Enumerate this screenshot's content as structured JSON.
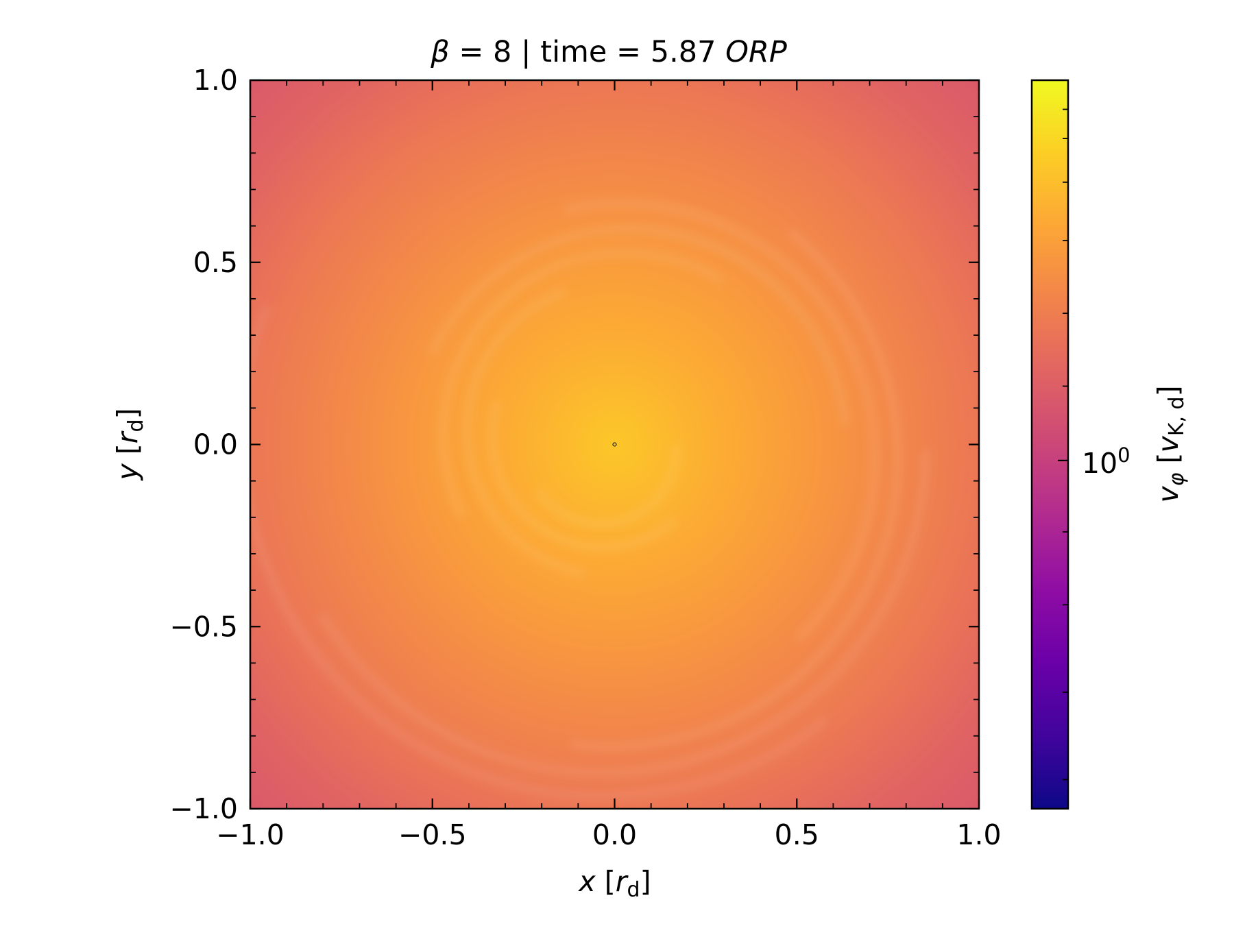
{
  "chart_data": {
    "type": "heatmap",
    "title": {
      "beta_symbol": "β",
      "beta_part": " = 8 | time = 5.87 ",
      "unit": "ORP"
    },
    "colormap": "plasma",
    "colormap_stops": [
      "#0d0887",
      "#41049d",
      "#6a00a8",
      "#8f0da4",
      "#b12a90",
      "#cc4778",
      "#e16462",
      "#f2844b",
      "#fca636",
      "#fcce25",
      "#f0f921"
    ],
    "field": "azimuthal velocity v_phi in the disk midplane, peaked at the center and decreasing outward with spiral structure",
    "xlim": [
      -1.0,
      1.0
    ],
    "ylim": [
      -1.0,
      1.0
    ],
    "x_ticks": [
      {
        "value": -1.0,
        "label": "−1.0"
      },
      {
        "value": -0.5,
        "label": "−0.5"
      },
      {
        "value": 0.0,
        "label": "0.0"
      },
      {
        "value": 0.5,
        "label": "0.5"
      },
      {
        "value": 1.0,
        "label": "1.0"
      }
    ],
    "y_ticks": [
      {
        "value": -1.0,
        "label": "−1.0"
      },
      {
        "value": -0.5,
        "label": "−0.5"
      },
      {
        "value": 0.0,
        "label": "0.0"
      },
      {
        "value": 0.5,
        "label": "0.5"
      },
      {
        "value": 1.0,
        "label": "1.0"
      }
    ],
    "xlabel": {
      "var": "x",
      "unit_open": " [",
      "unit_var": "r",
      "unit_sub": "d",
      "unit_close": "]"
    },
    "ylabel": {
      "var": "y",
      "unit_open": " [",
      "unit_var": "r",
      "unit_sub": "d",
      "unit_close": "]"
    },
    "colorbar": {
      "scale": "log",
      "tick_label_base": "10",
      "tick_label_exp": "0",
      "tick_value": 1.0,
      "tick_fraction": 0.478,
      "minor_tick_fractions": [
        0.04,
        0.16,
        0.28,
        0.38,
        0.58,
        0.68,
        0.78,
        0.86,
        0.92,
        0.96
      ],
      "label": {
        "var": "v",
        "var_sub": "φ",
        "unit_open": " [",
        "unit_var": "v",
        "unit_sub": "K, d",
        "unit_close": "]"
      }
    },
    "center_value_fraction": 0.88,
    "edge_value_fraction": 0.56
  }
}
